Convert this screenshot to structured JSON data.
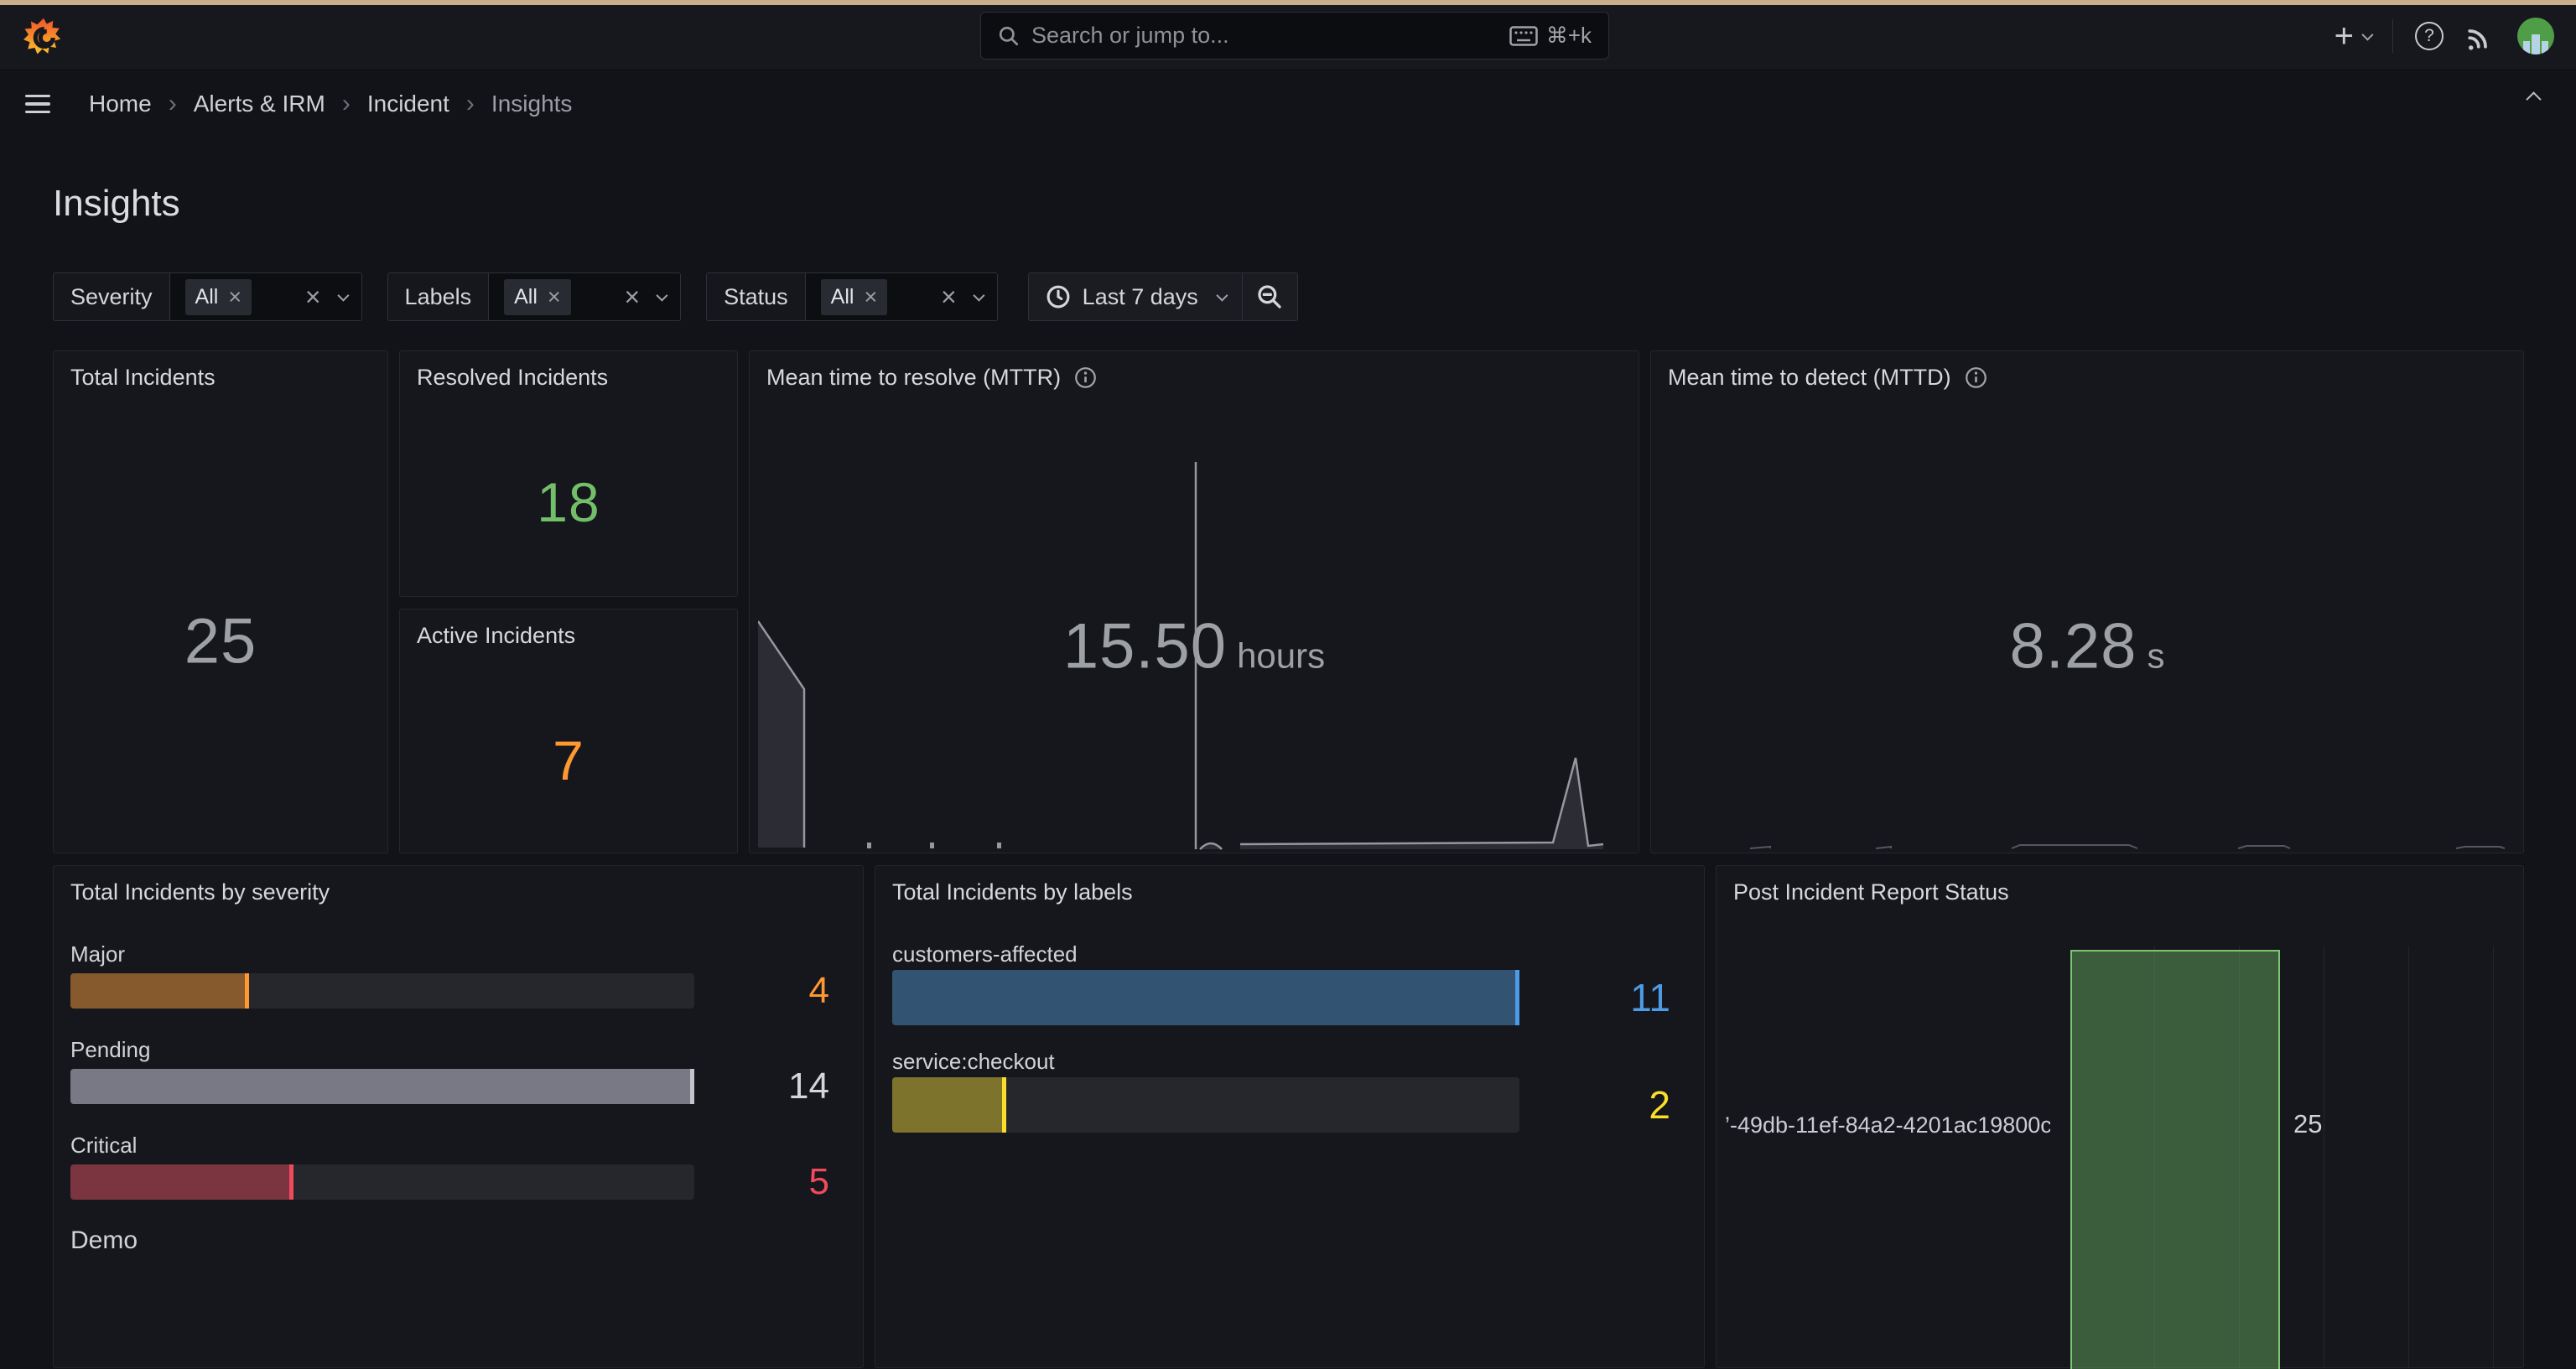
{
  "nav": {
    "search_placeholder": "Search or jump to...",
    "shortcut": "⌘+k"
  },
  "breadcrumb": [
    "Home",
    "Alerts & IRM",
    "Incident",
    "Insights"
  ],
  "breadcrumb_separator": "›",
  "page_title": "Insights",
  "filters": [
    {
      "label": "Severity",
      "value": "All"
    },
    {
      "label": "Labels",
      "value": "All"
    },
    {
      "label": "Status",
      "value": "All"
    }
  ],
  "chip_close": "×",
  "timepicker": {
    "label": "Last 7 days"
  },
  "topbar_icons": {
    "plus": "+",
    "help": "?"
  },
  "panels": {
    "total": {
      "title": "Total Incidents",
      "value": "25",
      "color": "#9DA0A5"
    },
    "resolved": {
      "title": "Resolved Incidents",
      "value": "18",
      "color": "#73BF69"
    },
    "active": {
      "title": "Active Incidents",
      "value": "7",
      "color": "#FF9830"
    },
    "mttr": {
      "title": "Mean time to resolve (MTTR)",
      "value": "15.50",
      "unit": "hours",
      "color": "#9DA0A5"
    },
    "mttd": {
      "title": "Mean time to detect (MTTD)",
      "value": "8.28",
      "unit": "s",
      "color": "#9DA0A5"
    },
    "severity": {
      "title": "Total Incidents by severity",
      "max": 14,
      "rows": [
        {
          "label": "Major",
          "value": 4,
          "fill": "rgba(255,152,48,0.45)",
          "tip": "#FF9830",
          "value_color": "#FF9830"
        },
        {
          "label": "Pending",
          "value": 14,
          "fill": "rgba(204,204,220,0.50)",
          "tip": "#C4C5CB",
          "value_color": "#D5D6DB"
        },
        {
          "label": "Critical",
          "value": 5,
          "fill": "rgba(242,73,92,0.42)",
          "tip": "#F2495C",
          "value_color": "#F2495C"
        },
        {
          "label": "Demo"
        }
      ]
    },
    "labels": {
      "title": "Total Incidents by labels",
      "max": 11,
      "rows": [
        {
          "label": "customers-affected",
          "value": 11,
          "fill": "rgba(77,155,230,0.38)",
          "tip": "#4D9BE6",
          "value_color": "#4D9BE6"
        },
        {
          "label": "service:checkout",
          "value": 2,
          "fill": "rgba(250,222,42,0.42)",
          "tip": "#FADE2A",
          "value_color": "#FADE2A"
        }
      ]
    },
    "pir": {
      "title": "Post Incident Report Status",
      "category": "’-49db-11ef-84a2-4201ac19800c",
      "value": "25",
      "bar_fill": "rgba(115,191,105,0.42)",
      "bar_border": "#7DC473"
    }
  },
  "chart_data": [
    {
      "type": "bar",
      "title": "Total Incidents by severity",
      "orientation": "horizontal",
      "categories": [
        "Major",
        "Pending",
        "Critical"
      ],
      "values": [
        4,
        14,
        5
      ],
      "xlim": [
        0,
        14
      ]
    },
    {
      "type": "bar",
      "title": "Total Incidents by labels",
      "orientation": "horizontal",
      "categories": [
        "customers-affected",
        "service:checkout"
      ],
      "values": [
        11,
        2
      ],
      "xlim": [
        0,
        11
      ]
    },
    {
      "type": "bar",
      "title": "Post Incident Report Status",
      "orientation": "vertical",
      "categories": [
        "’-49db-11ef-84a2-4201ac19800c"
      ],
      "values": [
        25
      ]
    }
  ]
}
